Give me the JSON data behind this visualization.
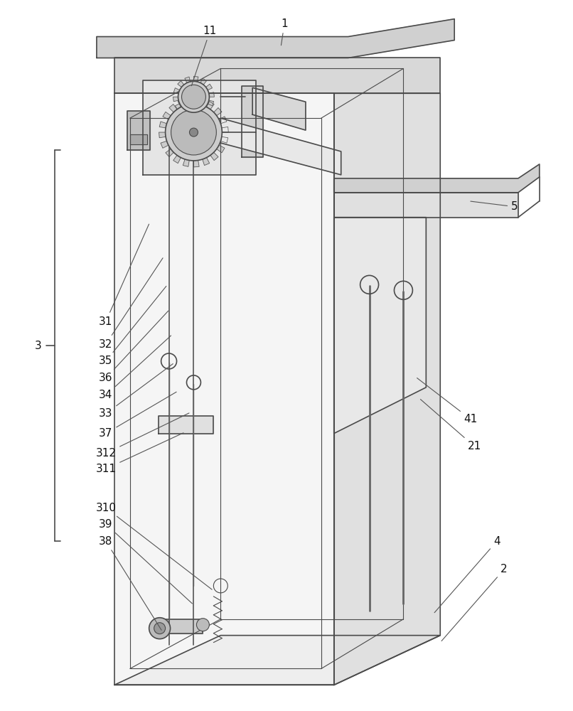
{
  "bg_color": "#ffffff",
  "line_color": "#4a4a4a",
  "line_width": 1.2,
  "thin_lw": 0.8,
  "annotation_fontsize": 11
}
